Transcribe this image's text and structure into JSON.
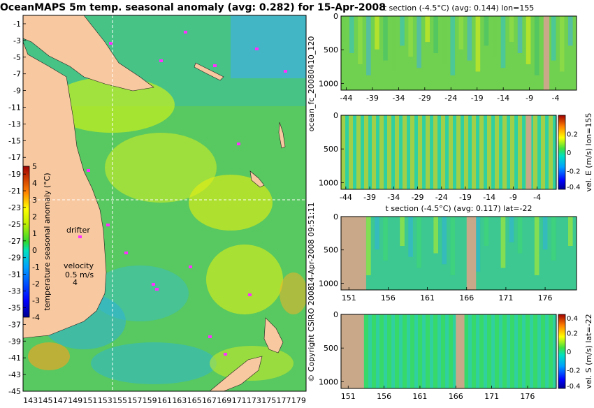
{
  "map": {
    "title": "OceanMAPS 5m temp. seasonal anomaly (avg: 0.282) for 15-Apr-2008",
    "lat_ticks": [
      "-1",
      "-3",
      "-5",
      "-7",
      "-9",
      "-11",
      "-13",
      "-15",
      "-17",
      "-19",
      "-21",
      "-23",
      "-25",
      "-27",
      "-29",
      "-31",
      "-33",
      "-35",
      "-37",
      "-39",
      "-41",
      "-43",
      "-45"
    ],
    "lon_ticks": [
      "143",
      "145",
      "147",
      "149",
      "151",
      "153",
      "155",
      "157",
      "159",
      "161",
      "163",
      "165",
      "167",
      "169",
      "171",
      "173",
      "175",
      "177",
      "179"
    ],
    "lat_range": [
      -45,
      0
    ],
    "lon_range": [
      142,
      180
    ],
    "colorbar": {
      "label": "temperature seasonal anomaly (°C)",
      "ticks": [
        "5",
        "4",
        "3",
        "2",
        "1",
        "0",
        "-1",
        "-2",
        "-3",
        "-4"
      ],
      "range": [
        -4,
        5
      ]
    },
    "annotations": {
      "drifter": "drifter",
      "velocity": "velocity",
      "velocity_value": "0.5 m/s",
      "velocity_count": "4"
    },
    "cross_lines": {
      "lon": 155,
      "lat": -22
    }
  },
  "sections": [
    {
      "id": "t_lon",
      "title": "t section (-4.5°C) (avg: 0.144) lon=155",
      "y_ticks": [
        "0",
        "500",
        "1000"
      ],
      "x_ticks": [
        "-44",
        "-39",
        "-34",
        "-29",
        "-24",
        "-19",
        "-14",
        "-9",
        "-4"
      ],
      "x_range": [
        -45,
        0
      ],
      "y_range": [
        0,
        1100
      ],
      "land_x": [
        [
          -6.3,
          -5.2
        ]
      ]
    },
    {
      "id": "v_lon",
      "title": "",
      "y_ticks": [
        "0",
        "500",
        "1000"
      ],
      "x_ticks": [
        "-44",
        "-39",
        "-34",
        "-29",
        "-24",
        "-19",
        "-14",
        "-9",
        "-4"
      ],
      "x_range": [
        -45,
        0
      ],
      "y_range": [
        0,
        1100
      ],
      "land_x": [
        [
          -6.3,
          -5.2
        ]
      ],
      "colorbar": {
        "label": "vel. E (m/s) lon=155",
        "ticks": [
          "0.2",
          "0",
          "-0.2",
          "-0.4"
        ],
        "range": [
          -0.4,
          0.4
        ]
      }
    },
    {
      "id": "t_lat",
      "title": "t section (-4.5°C) (avg: 0.117) lat=-22",
      "y_ticks": [
        "0",
        "500",
        "1000"
      ],
      "x_ticks": [
        "151",
        "156",
        "161",
        "166",
        "171",
        "176"
      ],
      "x_range": [
        150,
        180
      ],
      "y_range": [
        0,
        1100
      ],
      "land_x": [
        [
          150,
          153.2
        ],
        [
          166,
          167.2
        ]
      ]
    },
    {
      "id": "v_lat",
      "title": "",
      "y_ticks": [
        "0",
        "500",
        "1000"
      ],
      "x_ticks": [
        "151",
        "156",
        "161",
        "166",
        "171",
        "176"
      ],
      "x_range": [
        150,
        180
      ],
      "y_range": [
        0,
        1100
      ],
      "land_x": [
        [
          150,
          153.2
        ],
        [
          166,
          167.2
        ]
      ],
      "colorbar": {
        "label": "vel. S (m/s) lat=-22",
        "ticks": [
          "0.4",
          "0.2",
          "0",
          "-0.2",
          "-0.4"
        ],
        "range": [
          -0.4,
          0.4
        ]
      }
    }
  ],
  "side_labels": {
    "run": "ocean_fc_20080410_120",
    "date": "14-Apr-2008 09:51:11",
    "copyright": "© Copyright CSIRO 2008"
  },
  "chart_data": [
    {
      "type": "heatmap",
      "title": "OceanMAPS 5m temp. seasonal anomaly (avg: 0.282) for 15-Apr-2008",
      "xlabel": "",
      "ylabel": "",
      "xlim": [
        142,
        180
      ],
      "ylim": [
        -45,
        0
      ],
      "colorbar_label": "temperature seasonal anomaly (°C)",
      "colorbar_range": [
        -4,
        5
      ],
      "average": 0.282
    },
    {
      "type": "heatmap",
      "title": "t section (-4.5°C) (avg: 0.144) lon=155",
      "xlim": [
        -45,
        0
      ],
      "ylim": [
        1100,
        0
      ],
      "average": 0.144
    },
    {
      "type": "heatmap",
      "title": "",
      "xlim": [
        -45,
        0
      ],
      "ylim": [
        1100,
        0
      ],
      "colorbar_label": "vel. E (m/s) lon=155",
      "colorbar_range": [
        -0.4,
        0.4
      ]
    },
    {
      "type": "heatmap",
      "title": "t section (-4.5°C) (avg: 0.117) lat=-22",
      "xlim": [
        150,
        180
      ],
      "ylim": [
        1100,
        0
      ],
      "average": 0.117
    },
    {
      "type": "heatmap",
      "title": "",
      "xlim": [
        150,
        180
      ],
      "ylim": [
        1100,
        0
      ],
      "colorbar_label": "vel. S (m/s) lat=-22",
      "colorbar_range": [
        -0.4,
        0.4
      ]
    }
  ]
}
